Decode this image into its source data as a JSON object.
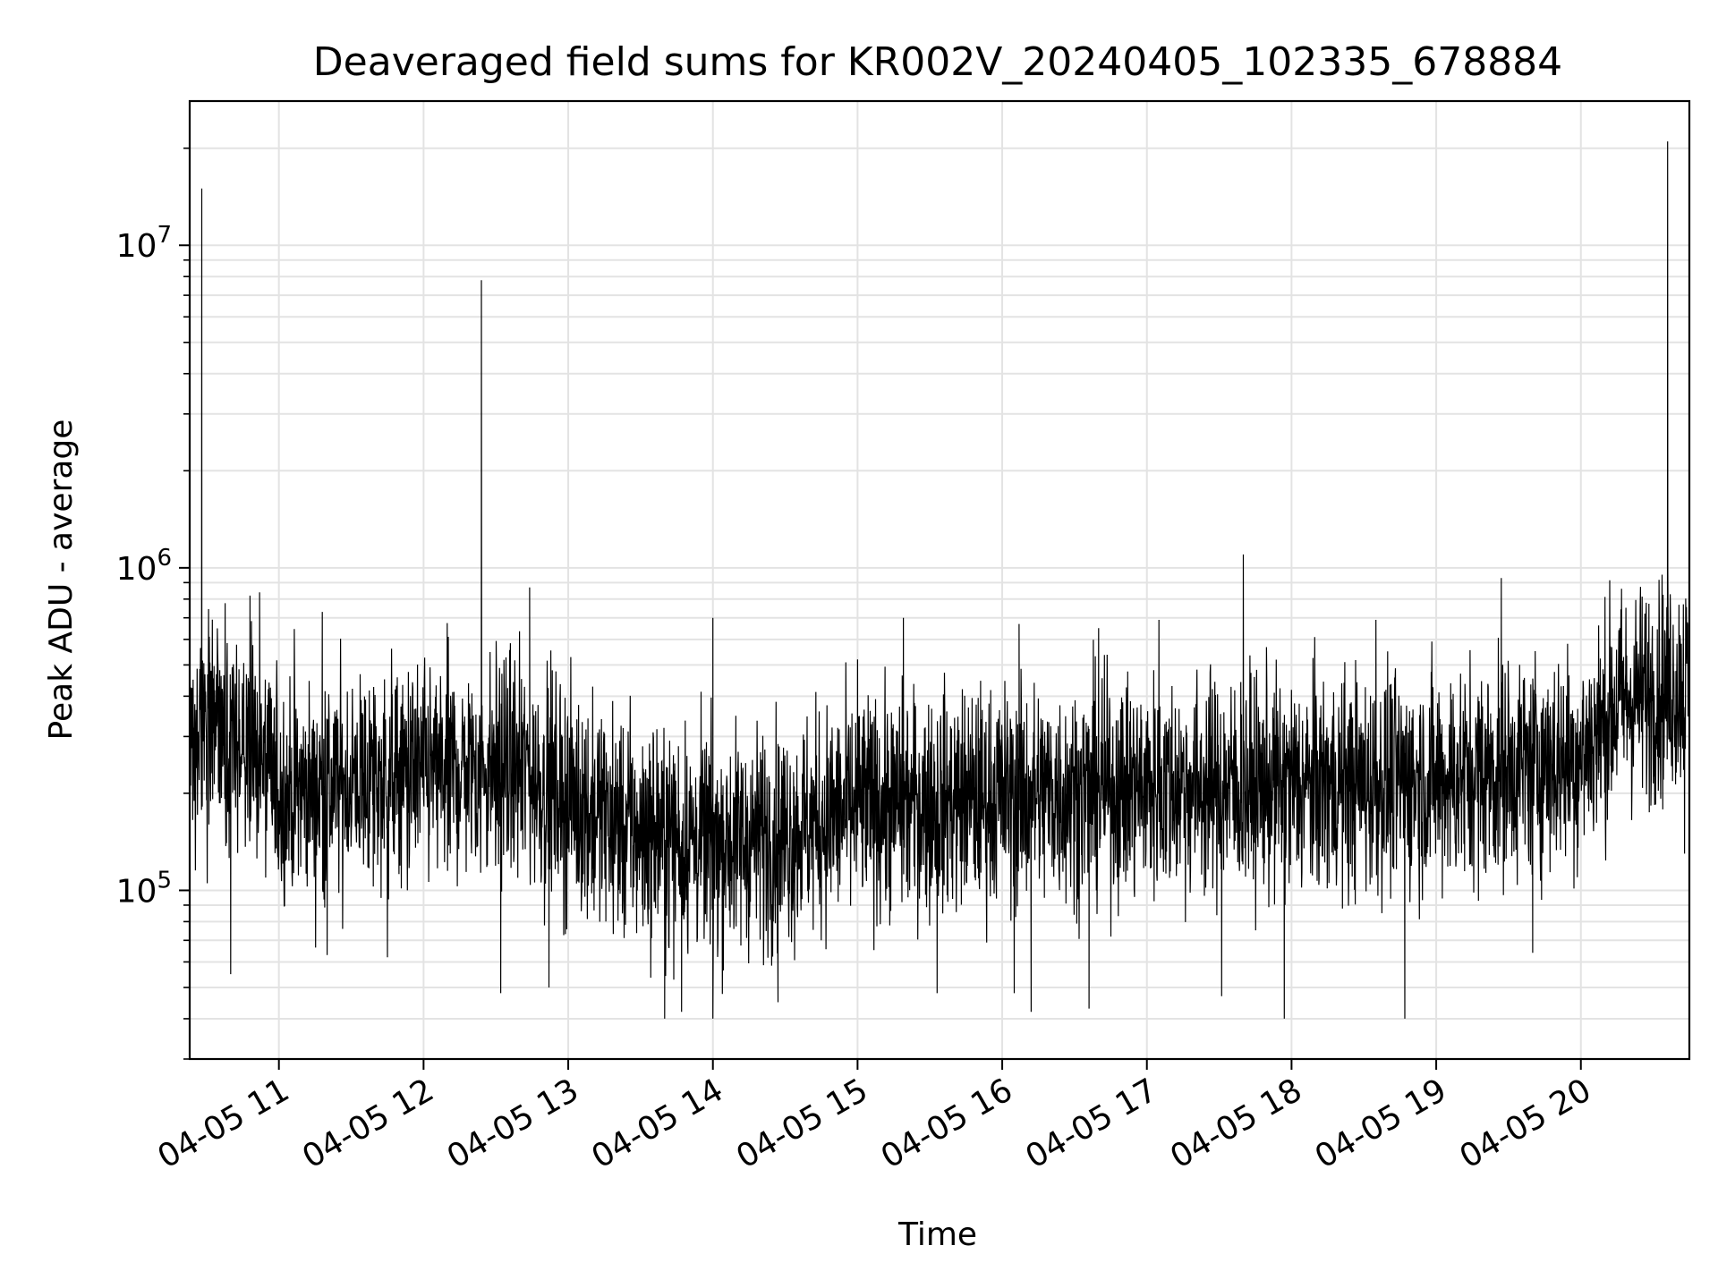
{
  "chart_data": {
    "type": "line",
    "title": "Deaveraged field sums for KR002V_20240405_102335_678884",
    "xlabel": "Time",
    "ylabel": "Peak ADU - average",
    "yscale": "log",
    "ylim": [
      30000,
      28000000
    ],
    "xlim": [
      "2024-04-05 10:23",
      "2024-04-05 20:45"
    ],
    "grid": true,
    "x_ticks": [
      {
        "t": "2024-04-05 11:00",
        "label": "04-05 11"
      },
      {
        "t": "2024-04-05 12:00",
        "label": "04-05 12"
      },
      {
        "t": "2024-04-05 13:00",
        "label": "04-05 13"
      },
      {
        "t": "2024-04-05 14:00",
        "label": "04-05 14"
      },
      {
        "t": "2024-04-05 15:00",
        "label": "04-05 15"
      },
      {
        "t": "2024-04-05 16:00",
        "label": "04-05 16"
      },
      {
        "t": "2024-04-05 17:00",
        "label": "04-05 17"
      },
      {
        "t": "2024-04-05 18:00",
        "label": "04-05 18"
      },
      {
        "t": "2024-04-05 19:00",
        "label": "04-05 19"
      },
      {
        "t": "2024-04-05 20:00",
        "label": "04-05 20"
      }
    ],
    "y_ticks": [
      {
        "value": 100000,
        "base": "10",
        "exp": "5"
      },
      {
        "value": 1000000,
        "base": "10",
        "exp": "6"
      },
      {
        "value": 10000000,
        "base": "10",
        "exp": "7"
      }
    ],
    "series_color": "#000000",
    "baseline_trend": [
      {
        "t": "2024-04-05 10:23",
        "value": 300000
      },
      {
        "t": "2024-04-05 10:50",
        "value": 270000
      },
      {
        "t": "2024-04-05 11:00",
        "value": 200000
      },
      {
        "t": "2024-04-05 12:00",
        "value": 230000
      },
      {
        "t": "2024-04-05 12:40",
        "value": 240000
      },
      {
        "t": "2024-04-05 13:00",
        "value": 190000
      },
      {
        "t": "2024-04-05 13:30",
        "value": 150000
      },
      {
        "t": "2024-04-05 14:00",
        "value": 140000
      },
      {
        "t": "2024-04-05 14:30",
        "value": 150000
      },
      {
        "t": "2024-04-05 15:00",
        "value": 180000
      },
      {
        "t": "2024-04-05 16:00",
        "value": 195000
      },
      {
        "t": "2024-04-05 17:00",
        "value": 210000
      },
      {
        "t": "2024-04-05 18:00",
        "value": 210000
      },
      {
        "t": "2024-04-05 19:00",
        "value": 220000
      },
      {
        "t": "2024-04-05 20:00",
        "value": 260000
      },
      {
        "t": "2024-04-05 20:15",
        "value": 380000
      },
      {
        "t": "2024-04-05 20:45",
        "value": 450000
      }
    ],
    "spikes": [
      {
        "t": "2024-04-05 10:28",
        "value": 15000000
      },
      {
        "t": "2024-04-05 10:40",
        "value": 55000
      },
      {
        "t": "2024-04-05 10:48",
        "value": 820000
      },
      {
        "t": "2024-04-05 10:52",
        "value": 840000
      },
      {
        "t": "2024-04-05 11:18",
        "value": 730000
      },
      {
        "t": "2024-04-05 11:20",
        "value": 63000
      },
      {
        "t": "2024-04-05 11:45",
        "value": 62000
      },
      {
        "t": "2024-04-05 12:24",
        "value": 7800000
      },
      {
        "t": "2024-04-05 12:32",
        "value": 48000
      },
      {
        "t": "2024-04-05 12:44",
        "value": 870000
      },
      {
        "t": "2024-04-05 12:52",
        "value": 50000
      },
      {
        "t": "2024-04-05 13:40",
        "value": 40000
      },
      {
        "t": "2024-04-05 13:47",
        "value": 42000
      },
      {
        "t": "2024-04-05 14:00",
        "value": 700000
      },
      {
        "t": "2024-04-05 14:00",
        "value": 40000
      },
      {
        "t": "2024-04-05 14:27",
        "value": 45000
      },
      {
        "t": "2024-04-05 15:00",
        "value": 520000
      },
      {
        "t": "2024-04-05 15:19",
        "value": 700000
      },
      {
        "t": "2024-04-05 15:33",
        "value": 48000
      },
      {
        "t": "2024-04-05 16:05",
        "value": 48000
      },
      {
        "t": "2024-04-05 16:07",
        "value": 670000
      },
      {
        "t": "2024-04-05 16:12",
        "value": 42000
      },
      {
        "t": "2024-04-05 16:36",
        "value": 43000
      },
      {
        "t": "2024-04-05 16:40",
        "value": 650000
      },
      {
        "t": "2024-04-05 17:05",
        "value": 690000
      },
      {
        "t": "2024-04-05 17:31",
        "value": 47000
      },
      {
        "t": "2024-04-05 17:40",
        "value": 1100000
      },
      {
        "t": "2024-04-05 17:57",
        "value": 40000
      },
      {
        "t": "2024-04-05 18:35",
        "value": 690000
      },
      {
        "t": "2024-04-05 18:47",
        "value": 40000
      },
      {
        "t": "2024-04-05 19:27",
        "value": 930000
      },
      {
        "t": "2024-04-05 19:40",
        "value": 64000
      },
      {
        "t": "2024-04-05 20:36",
        "value": 21000000
      },
      {
        "t": "2024-04-05 20:43",
        "value": 130000
      }
    ]
  }
}
